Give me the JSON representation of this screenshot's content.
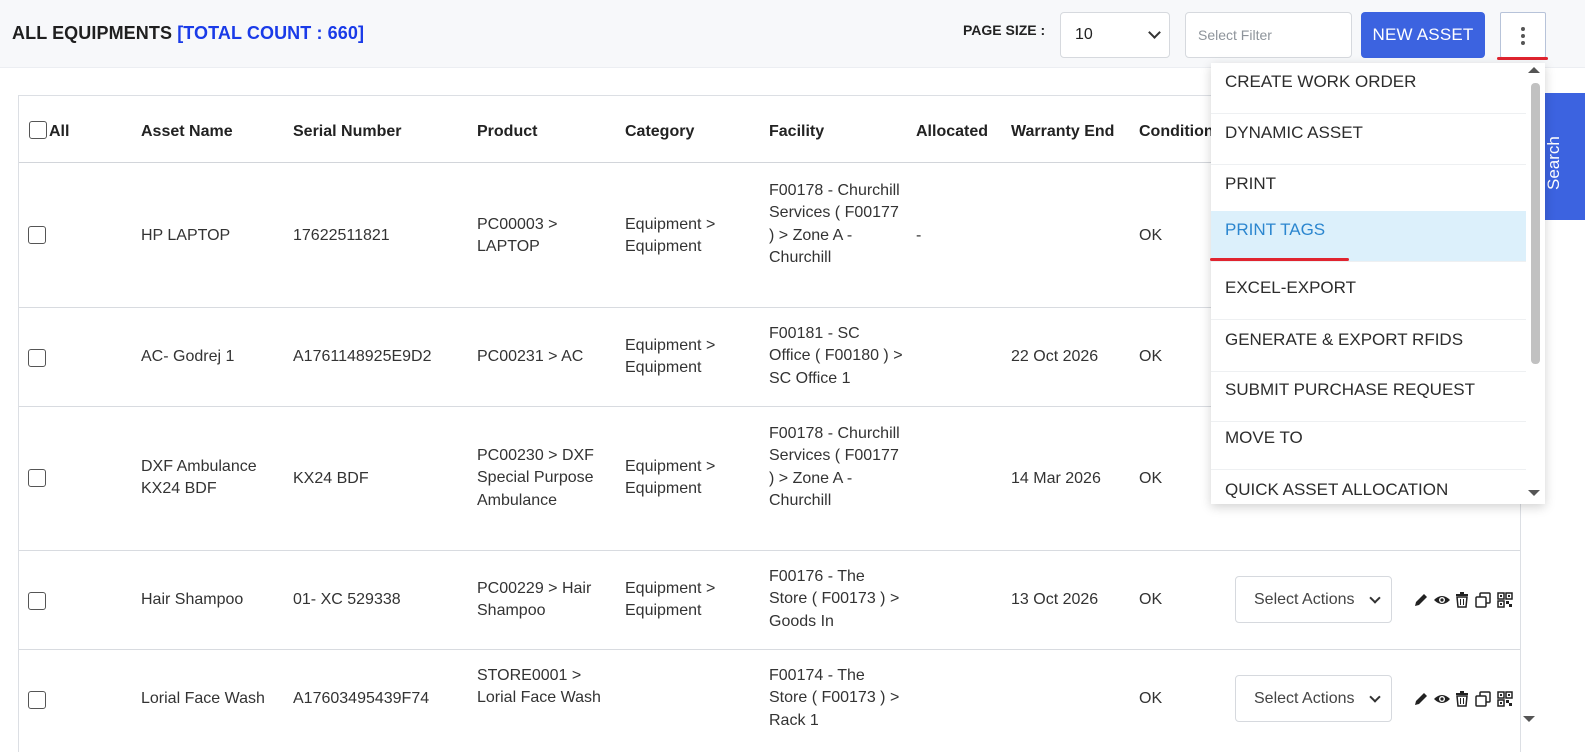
{
  "header": {
    "title": "ALL EQUIPMENTS",
    "count_label": "[TOTAL COUNT : 660]",
    "page_size_label": "PAGE SIZE :",
    "page_size_value": "10",
    "filter_placeholder": "Select Filter",
    "new_asset_label": "NEW ASSET"
  },
  "table": {
    "columns": {
      "all": "All",
      "asset_name": "Asset Name",
      "serial_number": "Serial Number",
      "product": "Product",
      "category": "Category",
      "facility": "Facility",
      "allocated": "Allocated",
      "warranty_end": "Warranty End",
      "condition": "Condition"
    },
    "rows": [
      {
        "asset_name": "HP LAPTOP",
        "serial_number": "17622511821",
        "product": "PC00003 > LAPTOP",
        "category": "Equipment > Equipment",
        "facility": "F00178 - Churchill Services ( F00177 ) > Zone A - Churchill",
        "allocated": "-",
        "warranty_end": "",
        "condition": "OK",
        "action": ""
      },
      {
        "asset_name": "AC- Godrej 1",
        "serial_number": "A1761148925E9D2",
        "product": "PC00231 > AC",
        "category": "Equipment > Equipment",
        "facility": "F00181 - SC Office ( F00180 ) > SC Office 1",
        "allocated": "",
        "warranty_end": "22 Oct 2026",
        "condition": "OK",
        "action": ""
      },
      {
        "asset_name": "DXF Ambulance KX24 BDF",
        "serial_number": "KX24 BDF",
        "product": "PC00230 > DXF Special Purpose Ambulance",
        "category": "Equipment > Equipment",
        "facility": "F00178 - Churchill Services ( F00177 ) > Zone A - Churchill",
        "allocated": "",
        "warranty_end": "14 Mar 2026",
        "condition": "OK",
        "action": ""
      },
      {
        "asset_name": "Hair Shampoo",
        "serial_number": "01- XC 529338",
        "product": "PC00229 > Hair Shampoo",
        "category": "Equipment > Equipment",
        "facility": "F00176 - The Store ( F00173 ) > Goods In",
        "allocated": "",
        "warranty_end": "13 Oct 2026",
        "condition": "OK",
        "action": "Select Actions"
      },
      {
        "asset_name": "Lorial Face Wash",
        "serial_number": "A17603495439F74",
        "product": "STORE0001 > Lorial Face Wash",
        "category": "",
        "facility": "F00174 - The Store ( F00173 ) > Rack 1",
        "allocated": "",
        "warranty_end": "",
        "condition": "OK",
        "action": "Select Actions"
      }
    ]
  },
  "menu": {
    "items": [
      "CREATE WORK ORDER",
      "DYNAMIC ASSET",
      "PRINT",
      "PRINT TAGS",
      "EXCEL-EXPORT",
      "GENERATE & EXPORT RFIDS",
      "SUBMIT PURCHASE REQUEST",
      "MOVE TO",
      "QUICK ASSET ALLOCATION"
    ],
    "active_item": "PRINT TAGS"
  },
  "search_tab_label": "Search",
  "colors": {
    "accent": "#3c63e0",
    "count": "#1a3be8",
    "highlight_underline": "#e0242f",
    "active_item_bg": "#dcf0fb",
    "active_item_text": "#2b86cf"
  }
}
